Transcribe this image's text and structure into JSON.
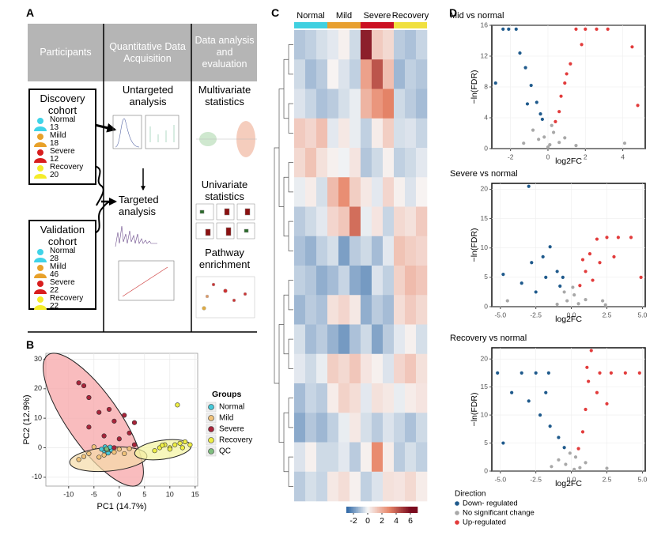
{
  "panels": {
    "a": "A",
    "b": "B",
    "c": "C",
    "d": "D"
  },
  "workflow": {
    "headers": [
      "Participants",
      "Quantitative Data Acquisition",
      "Data analysis and evaluation"
    ],
    "cohorts": [
      {
        "title": "Discovery cohort",
        "groups": [
          {
            "name": "Normal",
            "n": 13,
            "color": "#3fd3e8"
          },
          {
            "name": "Miild",
            "n": 18,
            "color": "#e8a12a"
          },
          {
            "name": "Severe",
            "n": 12,
            "color": "#d81e1e"
          },
          {
            "name": "Recovery",
            "n": 20,
            "color": "#f5ec2a"
          }
        ]
      },
      {
        "title": "Validation cohort",
        "groups": [
          {
            "name": "Normal",
            "n": 28,
            "color": "#3fd3e8"
          },
          {
            "name": "Miild",
            "n": 46,
            "color": "#e8a12a"
          },
          {
            "name": "Severe",
            "n": 22,
            "color": "#d81e1e"
          },
          {
            "name": "Recovery",
            "n": 22,
            "color": "#f5ec2a"
          }
        ]
      }
    ],
    "steps": [
      "Untargeted analysis",
      "Targeted analysis"
    ],
    "analyses": [
      "Multivariate statistics",
      "Univariate statistics",
      "Pathway enrichment"
    ]
  },
  "chart_data": [
    {
      "type": "scatter",
      "x_label": "PC1 (14.7%)",
      "y_label": "PC2 (12.9%)",
      "legend_title": "Groups",
      "xlim": [
        -14.5,
        15.5
      ],
      "xticks": [
        -10,
        -5,
        0,
        5,
        10,
        15
      ],
      "ylim": [
        -13,
        32
      ],
      "yticks": [
        -10,
        0,
        10,
        20,
        30
      ],
      "grid": true,
      "series": [
        {
          "name": "Normal",
          "color": "#45c8d8",
          "x": [
            -3,
            -2.5,
            -2,
            -3.5,
            -1.5,
            -2.2,
            -2.8,
            -1.8
          ],
          "values": [
            -1,
            -0.3,
            -1.2,
            -0.5,
            -0.8,
            -1.8,
            0.3,
            0.2
          ]
        },
        {
          "name": "Mild",
          "color": "#f0c27a",
          "x": [
            -6,
            -7,
            -4,
            -3,
            -1,
            0,
            1,
            -8,
            -5,
            2
          ],
          "values": [
            -2,
            -3,
            -3.2,
            -2.5,
            -1.5,
            -0.5,
            -2,
            -4,
            0.3,
            -0.3
          ]
        },
        {
          "name": "Severe",
          "color": "#a8243a",
          "x": [
            -8,
            -7,
            -6,
            -4,
            -2,
            -1,
            1,
            3,
            -3,
            0,
            -6,
            3,
            2,
            -1
          ],
          "values": [
            22,
            21,
            17,
            12,
            13,
            9,
            11,
            8.5,
            4,
            3,
            7,
            1,
            5,
            0
          ]
        },
        {
          "name": "Recovery",
          "color": "#eeee44",
          "x": [
            7,
            8,
            9,
            10,
            11,
            12,
            13,
            14,
            10,
            11.5,
            8.5,
            12.5
          ],
          "values": [
            -1,
            0,
            1,
            0,
            1,
            1.5,
            2,
            1,
            -0.5,
            14.5,
            0.8,
            0
          ]
        },
        {
          "name": "QC",
          "color": "#7fbf7f",
          "x": [
            -2.6,
            -2.4,
            -2.5
          ],
          "values": [
            -0.5,
            -0.7,
            -0.4
          ]
        }
      ]
    },
    {
      "type": "heatmap",
      "groups": [
        {
          "name": "Normal",
          "color": "#40d0e0",
          "columns": 3
        },
        {
          "name": "Mild",
          "color": "#e8a030",
          "columns": 3
        },
        {
          "name": "Severe",
          "color": "#cc1122",
          "columns": 3
        },
        {
          "name": "Recovery",
          "color": "#f0e040",
          "columns": 3
        }
      ],
      "zlim": [
        -3,
        7
      ],
      "zticks": [
        -2,
        0,
        2,
        4,
        6
      ],
      "colorscale": [
        [
          -3,
          "#2a64a4"
        ],
        [
          0,
          "#f7f7f7"
        ],
        [
          3,
          "#e8876a"
        ],
        [
          6,
          "#7a0a1e"
        ]
      ],
      "values": [
        [
          -1,
          -0.8,
          -0.5,
          -0.3,
          0.2,
          -0.6,
          5.5,
          1.2,
          0.8,
          -0.9,
          -1.1,
          -0.7
        ],
        [
          -0.6,
          -1.2,
          -0.9,
          0.1,
          -0.4,
          -0.8,
          2.3,
          4.2,
          1.5,
          -1.3,
          -0.8,
          -1.0
        ],
        [
          -0.4,
          -0.7,
          -1.1,
          -0.9,
          -0.5,
          -0.2,
          1.8,
          2.6,
          3.1,
          -0.6,
          -0.9,
          -1.2
        ],
        [
          1.2,
          0.9,
          1.5,
          -0.3,
          0.4,
          -0.2,
          -0.8,
          0.3,
          1.1,
          -0.5,
          -0.4,
          -0.7
        ],
        [
          0.8,
          1.4,
          0.6,
          0.2,
          -0.1,
          0.5,
          -1.0,
          -0.6,
          0.2,
          -0.8,
          -0.6,
          -0.3
        ],
        [
          -0.2,
          0.3,
          -0.5,
          1.6,
          2.8,
          1.1,
          0.4,
          -0.3,
          0.9,
          0.2,
          -0.4,
          0.1
        ],
        [
          -0.9,
          -0.6,
          -0.3,
          0.9,
          1.3,
          3.6,
          -0.2,
          0.5,
          -0.7,
          0.8,
          0.6,
          1.2
        ],
        [
          -1.1,
          -1.4,
          -0.8,
          -0.5,
          -1.8,
          -0.9,
          -0.6,
          -1.2,
          -0.3,
          1.4,
          1.1,
          0.9
        ],
        [
          -0.8,
          -1.0,
          -1.5,
          -1.2,
          -0.7,
          -1.6,
          -1.9,
          -0.4,
          -0.8,
          1.0,
          1.6,
          1.3
        ],
        [
          -1.3,
          -0.9,
          -1.1,
          0.6,
          0.9,
          0.4,
          -1.5,
          -0.9,
          -1.2,
          0.7,
          1.2,
          0.8
        ],
        [
          -0.5,
          -1.2,
          -0.9,
          -1.4,
          -1.9,
          -1.1,
          -0.6,
          -1.7,
          -0.9,
          -0.3,
          0.2,
          -0.5
        ],
        [
          -0.3,
          -0.6,
          -0.2,
          1.1,
          0.8,
          1.3,
          0.5,
          0.2,
          -0.4,
          0.9,
          1.3,
          0.6
        ],
        [
          -1.2,
          -0.7,
          -0.9,
          0.3,
          1.0,
          0.7,
          -0.3,
          0.6,
          0.4,
          -0.2,
          0.3,
          0.5
        ],
        [
          -1.6,
          -1.0,
          -1.3,
          -0.8,
          -0.2,
          0.4,
          -0.5,
          -0.9,
          -0.4,
          -0.7,
          -1.1,
          -0.6
        ],
        [
          -0.4,
          0.2,
          -0.6,
          -0.6,
          -0.3,
          -0.9,
          0.2,
          2.9,
          0.3,
          -0.9,
          -0.5,
          -0.8
        ],
        [
          -0.9,
          -0.5,
          -0.7,
          0.4,
          0.7,
          0.2,
          -0.8,
          -0.4,
          0.6,
          0.5,
          0.8,
          0.3
        ]
      ]
    },
    {
      "type": "volcano",
      "title": "Mid vs normal",
      "x_label": "log2FC",
      "y_label": "−ln(FDR)",
      "xlim": [
        -3,
        5.2
      ],
      "xticks": [
        -2,
        0,
        2,
        4
      ],
      "ylim": [
        0,
        16
      ],
      "yticks": [
        0,
        4,
        8,
        12,
        16
      ],
      "grid": true,
      "series": [
        {
          "x": [
            -2.4,
            -2.1,
            -1.7,
            -2.8,
            -1.5,
            -1.2,
            -0.9,
            -0.6,
            -0.4,
            -1.1,
            -0.3
          ],
          "values": [
            15.5,
            15.5,
            15.5,
            8.5,
            12.4,
            10.5,
            8.2,
            6,
            4.5,
            5.8,
            3.8
          ]
        },
        {
          "x": [
            -0.5,
            0.1,
            0.3,
            -0.2,
            0.6,
            -0.8,
            0.2,
            0.9,
            -1.3,
            1.5,
            4.1,
            0
          ],
          "values": [
            1.2,
            0.5,
            2.1,
            1.5,
            0.8,
            2.4,
            3.0,
            1.4,
            0.7,
            0.4,
            0.7,
            0.2
          ]
        },
        {
          "x": [
            0.4,
            0.6,
            0.9,
            1.2,
            1.5,
            2.0,
            2.6,
            3.2,
            4.5,
            4.8,
            1.8,
            0.7,
            1.0
          ],
          "values": [
            3.5,
            4.8,
            8.5,
            11,
            15.5,
            15.5,
            15.5,
            15.5,
            13.2,
            5.6,
            13.5,
            6.8,
            9.7
          ]
        }
      ]
    },
    {
      "type": "volcano",
      "title": "Severe vs normal",
      "x_label": "log2FC",
      "y_label": "−ln(FDR)",
      "xlim": [
        -5.6,
        5.2
      ],
      "xticks": [
        {
          "value": -5,
          "label": "-5.0"
        },
        {
          "value": -2.5,
          "label": "-2.5"
        },
        {
          "value": 0,
          "label": "0.0"
        },
        {
          "value": 2.5,
          "label": "2.5"
        },
        {
          "value": 5,
          "label": "5.0"
        }
      ],
      "ylim": [
        0,
        21
      ],
      "yticks": [
        0,
        5,
        10,
        15,
        20
      ],
      "grid": true,
      "series": [
        {
          "x": [
            -3.0,
            -4.8,
            -3.5,
            -2.8,
            -2,
            -1.5,
            -1,
            -0.6,
            -2.5,
            -0.8,
            -1.8
          ],
          "values": [
            20.5,
            5.5,
            4,
            7.5,
            8.5,
            10.2,
            6,
            5,
            2.5,
            3.5,
            5
          ]
        },
        {
          "x": [
            -0.3,
            0.2,
            0.5,
            -0.5,
            1.0,
            -1.0,
            2.2,
            -4.5,
            0.1,
            2.4
          ],
          "values": [
            1,
            2,
            0.5,
            2.5,
            1.2,
            0.4,
            1,
            1,
            3.3,
            0.3
          ]
        },
        {
          "x": [
            0.6,
            1.0,
            1.3,
            1.8,
            2.5,
            3.3,
            4.2,
            4.9,
            2.0,
            1.5,
            3.0,
            0.8
          ],
          "values": [
            3.6,
            6,
            9,
            11.5,
            11.8,
            11.8,
            11.8,
            5,
            7.5,
            4.5,
            8.5,
            8
          ]
        }
      ]
    },
    {
      "type": "volcano",
      "title": "Recovery vs normal",
      "x_label": "log2FC",
      "y_label": "−ln(FDR)",
      "xlim": [
        -5.6,
        5.2
      ],
      "xticks": [
        {
          "value": -5,
          "label": "-5.0"
        },
        {
          "value": -2.5,
          "label": "-2.5"
        },
        {
          "value": 0,
          "label": "0.0"
        },
        {
          "value": 2.5,
          "label": "2.5"
        },
        {
          "value": 5,
          "label": "5.0"
        }
      ],
      "ylim": [
        0,
        22
      ],
      "yticks": [
        0,
        5,
        10,
        15,
        20
      ],
      "grid": true,
      "series": [
        {
          "x": [
            -5.2,
            -3.5,
            -2.5,
            -1.6,
            -4.2,
            -3,
            -2.2,
            -1.5,
            -0.9,
            -0.5,
            -1.8,
            -4.8
          ],
          "values": [
            17.5,
            17.5,
            17.5,
            17.5,
            14,
            12.5,
            10,
            8,
            6,
            4.2,
            14,
            5
          ]
        },
        {
          "x": [
            -0.4,
            0.3,
            0.6,
            -0.9,
            1.0,
            -0.1,
            2.5,
            -1.4,
            0.2
          ],
          "values": [
            1.2,
            2.5,
            0.6,
            2,
            1.5,
            3.2,
            0.5,
            0.8,
            0.3
          ]
        },
        {
          "x": [
            0.5,
            0.8,
            1.0,
            1.2,
            1.4,
            2.0,
            2.8,
            3.8,
            4.8,
            1.8,
            2.5,
            1.1
          ],
          "values": [
            4,
            7,
            11,
            16,
            21.5,
            17.5,
            17.5,
            17.5,
            17.5,
            14,
            12,
            18.5
          ]
        }
      ]
    }
  ],
  "direction_legend": {
    "title": "Direction",
    "items": [
      {
        "name": "Down- regulated",
        "color": "#1f5a8c"
      },
      {
        "name": "No significant change",
        "color": "#a8a8a8"
      },
      {
        "name": "Up-regulated",
        "color": "#e23b3b"
      }
    ]
  }
}
